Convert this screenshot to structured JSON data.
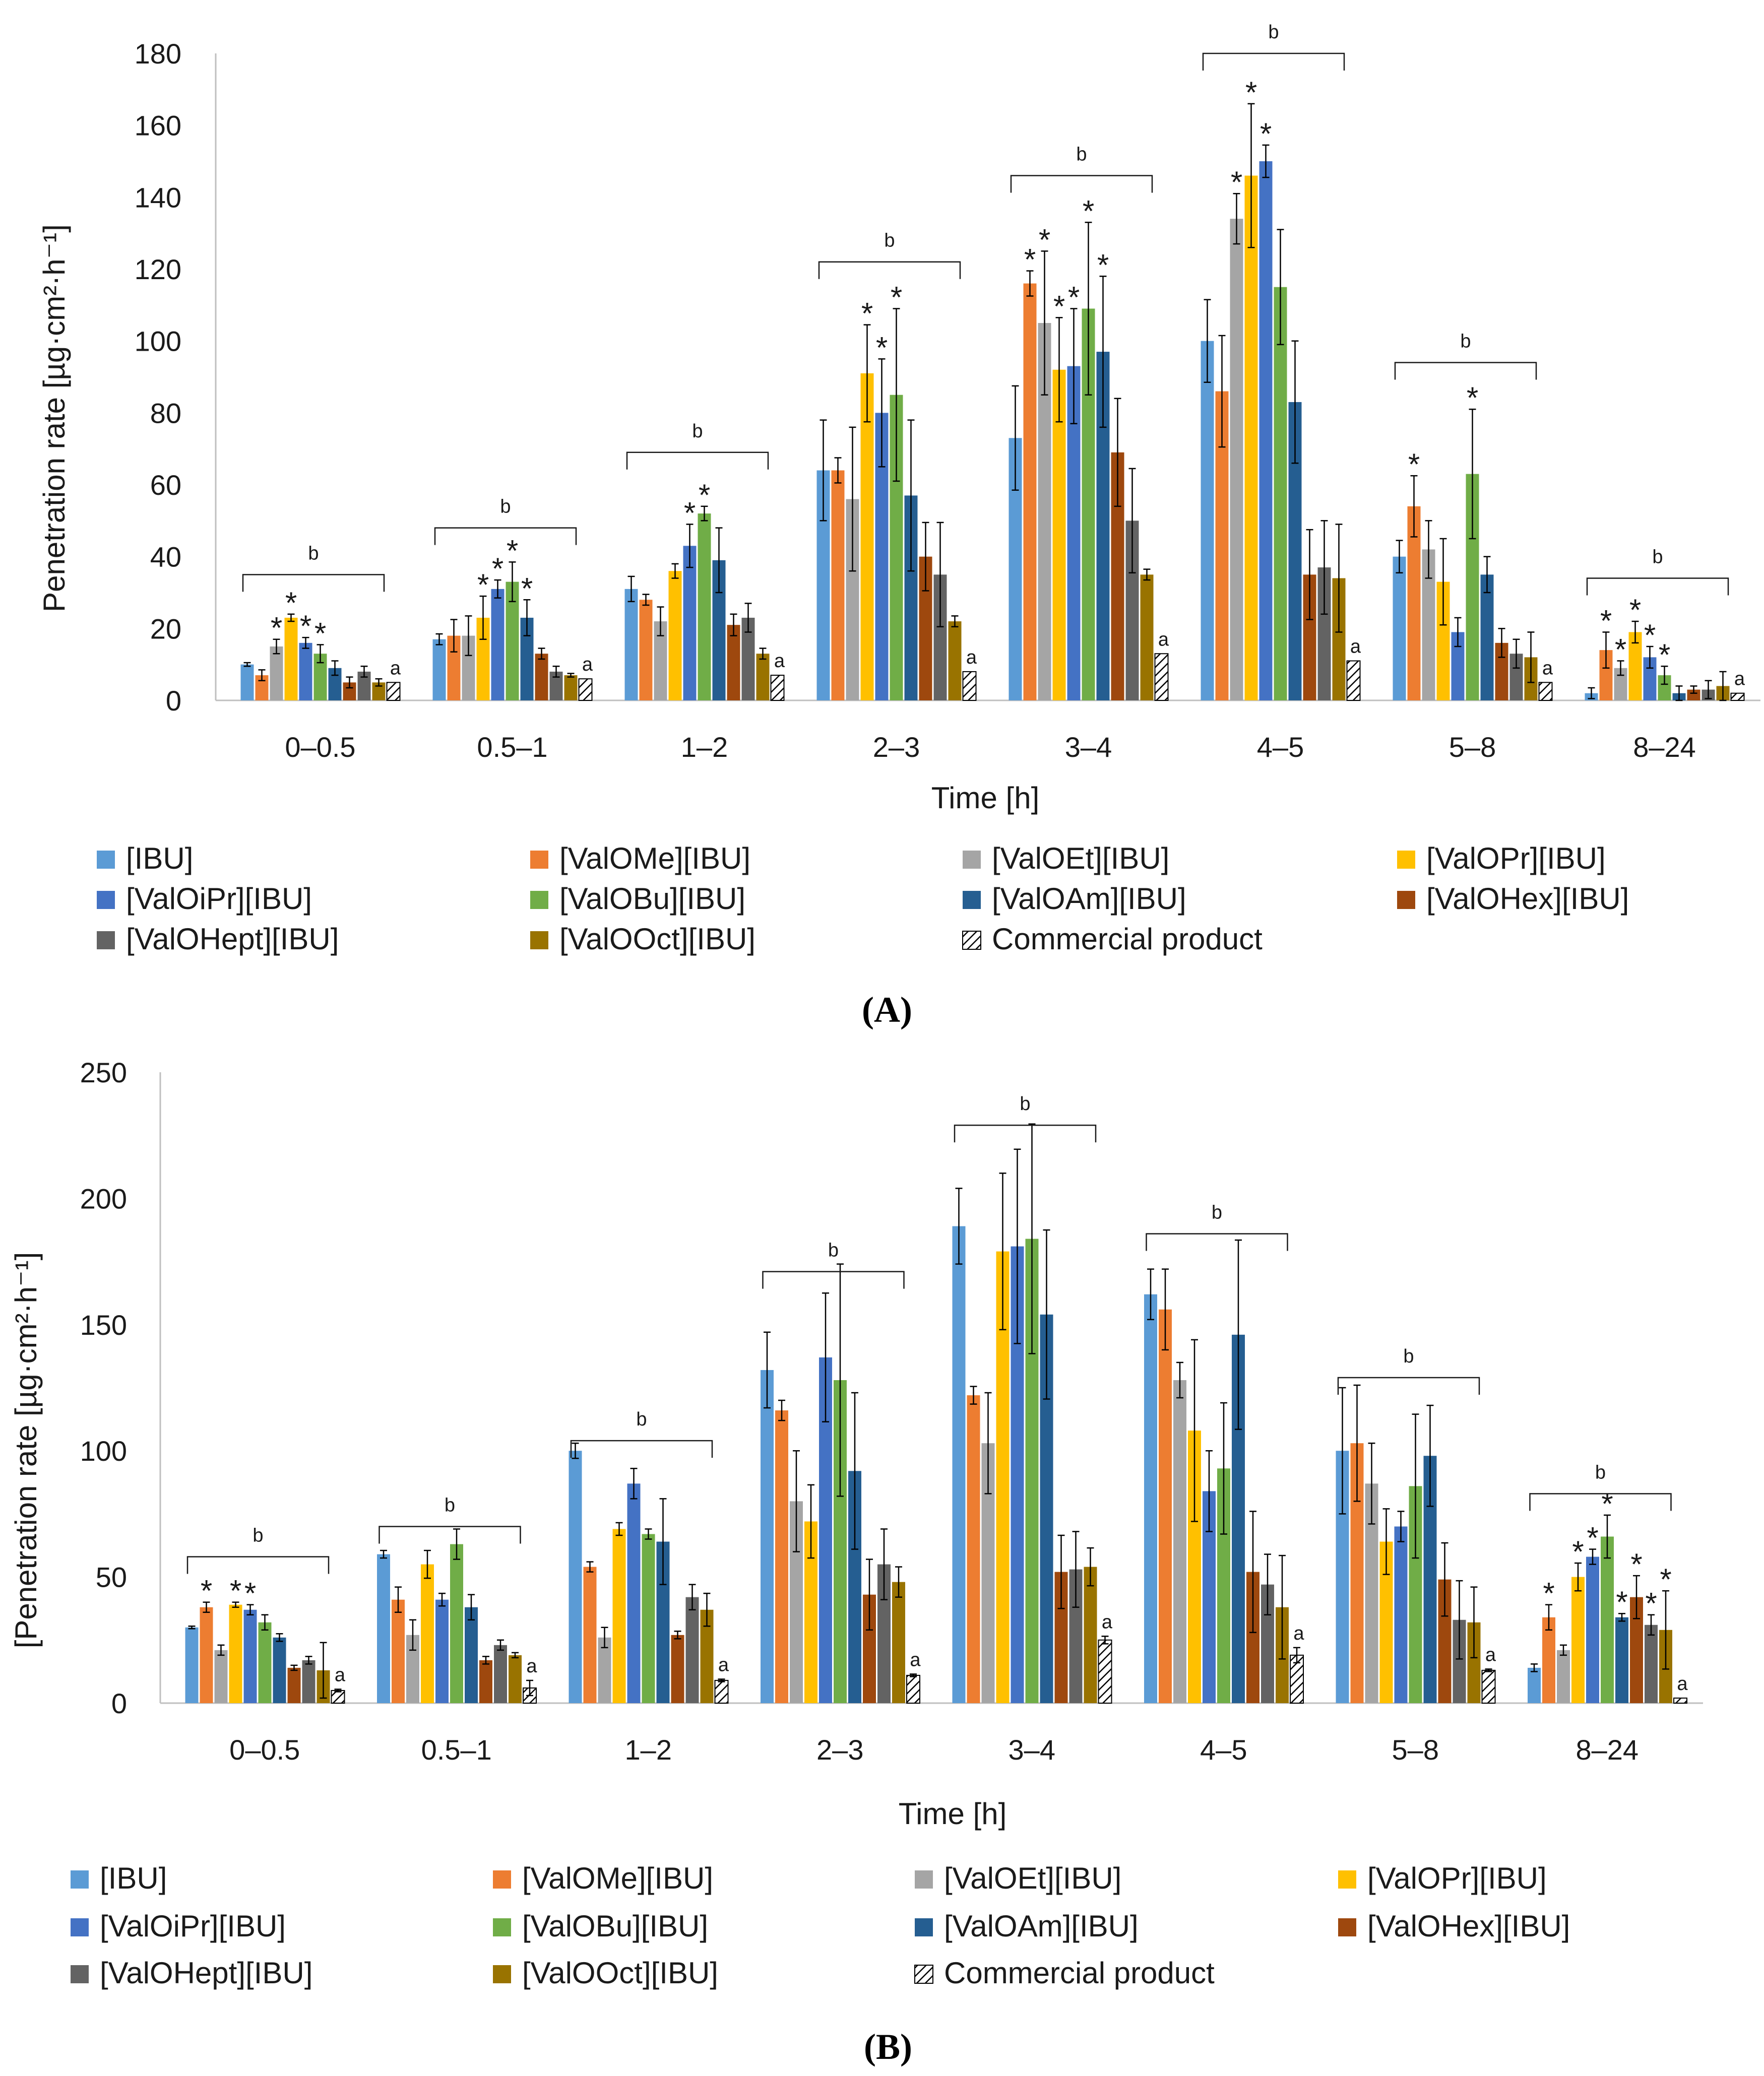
{
  "series_style": [
    {
      "name": "[IBU]",
      "color": "#5B9BD5"
    },
    {
      "name": "[ValOMe][IBU]",
      "color": "#ED7D31"
    },
    {
      "name": "[ValOEt][IBU]",
      "color": "#A5A5A5"
    },
    {
      "name": "[ValOPr][IBU]",
      "color": "#FFC000"
    },
    {
      "name": "[ValOiPr][IBU]",
      "color": "#4472C4"
    },
    {
      "name": "[ValOBu][IBU]",
      "color": "#70AD47"
    },
    {
      "name": "[ValOAm][IBU]",
      "color": "#255E91"
    },
    {
      "name": "[ValOHex][IBU]",
      "color": "#9E480E"
    },
    {
      "name": "[ValOHept][IBU]",
      "color": "#636363"
    },
    {
      "name": "[ValOOct][IBU]",
      "color": "#997300"
    },
    {
      "name": "Commercial product",
      "color": "hatch"
    }
  ],
  "chart_data": [
    {
      "type": "bar",
      "panel_label": "(A)",
      "panel_letter": "A",
      "xlabel": "Time [h]",
      "ylabel": "Penetration rate [µg·cm²·h⁻¹]",
      "ylim": [
        0,
        180
      ],
      "yticks": [
        0,
        20,
        40,
        60,
        80,
        100,
        120,
        140,
        160,
        180
      ],
      "categories": [
        "0–0.5",
        "0.5–1",
        "1–2",
        "2–3",
        "3–4",
        "4–5",
        "5–8",
        "8–24"
      ],
      "series": [
        {
          "name": "[IBU]",
          "values": [
            10,
            17,
            31,
            64,
            73,
            100,
            40,
            2
          ],
          "errors": [
            0.5,
            1.5,
            3.5,
            14,
            14.5,
            11.5,
            4.5,
            1.5
          ]
        },
        {
          "name": "[ValOMe][IBU]",
          "values": [
            7,
            18,
            28,
            64,
            116,
            86,
            54,
            14
          ],
          "errors": [
            1.5,
            4.5,
            1.5,
            3.5,
            3.5,
            15.5,
            8.5,
            5
          ]
        },
        {
          "name": "[ValOEt][IBU]",
          "values": [
            15,
            18,
            22,
            56,
            105,
            134,
            42,
            9
          ],
          "errors": [
            2,
            5.5,
            4,
            20,
            20,
            7,
            8,
            2
          ]
        },
        {
          "name": "[ValOPr][IBU]",
          "values": [
            23,
            23,
            36,
            91,
            92,
            146,
            33,
            19
          ],
          "errors": [
            1,
            6,
            2,
            13.5,
            14.5,
            20,
            12,
            3
          ]
        },
        {
          "name": "[ValOiPr][IBU]",
          "values": [
            16,
            31,
            43,
            80,
            93,
            150,
            19,
            12
          ],
          "errors": [
            1.5,
            2.5,
            6,
            15,
            16,
            4.5,
            4,
            3
          ]
        },
        {
          "name": "[ValOBu][IBU]",
          "values": [
            13,
            33,
            52,
            85,
            109,
            115,
            63,
            7
          ],
          "errors": [
            2.5,
            5.5,
            2,
            24,
            24,
            16,
            18,
            2.5
          ]
        },
        {
          "name": "[ValOAm][IBU]",
          "values": [
            9,
            23,
            39,
            57,
            97,
            83,
            35,
            2
          ],
          "errors": [
            2,
            5,
            9,
            21,
            21,
            17,
            5,
            2
          ]
        },
        {
          "name": "[ValOHex][IBU]",
          "values": [
            5,
            13,
            21,
            40,
            69,
            35,
            16,
            3
          ],
          "errors": [
            1.5,
            1.5,
            3,
            9.5,
            15,
            12.5,
            4,
            1
          ]
        },
        {
          "name": "[ValOHept][IBU]",
          "values": [
            8,
            8,
            23,
            35,
            50,
            37,
            13,
            3
          ],
          "errors": [
            1.5,
            1.5,
            4,
            14.5,
            14.5,
            13,
            4,
            2.5
          ]
        },
        {
          "name": "[ValOOct][IBU]",
          "values": [
            5,
            7,
            13,
            22,
            35,
            34,
            12,
            4
          ],
          "errors": [
            1,
            0.5,
            1.5,
            1.5,
            1.5,
            15,
            7,
            4
          ]
        },
        {
          "name": "Commercial product",
          "values": [
            5,
            6,
            7,
            8,
            13,
            11,
            5,
            2
          ],
          "errors": [
            0,
            0,
            0,
            0,
            0,
            0,
            0,
            0
          ]
        }
      ],
      "significance": {
        "a_marks": [
          "a",
          "a",
          "a",
          "a",
          "a",
          "a",
          "a",
          "a"
        ],
        "b_brackets": [
          {
            "label": "b",
            "category": "0–0.5",
            "value": 35
          },
          {
            "label": "b",
            "category": "0.5–1",
            "value": 48
          },
          {
            "label": "b",
            "category": "1–2",
            "value": 69
          },
          {
            "label": "b",
            "category": "2–3",
            "value": 122
          },
          {
            "label": "b",
            "category": "3–4",
            "value": 146
          },
          {
            "label": "b",
            "category": "4–5",
            "value": 180
          },
          {
            "label": "b",
            "category": "5–8",
            "value": 94
          },
          {
            "label": "b",
            "category": "8–24",
            "value": 34
          }
        ],
        "stars": [
          {
            "mark": "*",
            "category": 0,
            "series": [
              2,
              3,
              4,
              5
            ]
          },
          {
            "mark": "*",
            "category": 1,
            "series": [
              3,
              4,
              5,
              6
            ]
          },
          {
            "mark": "*",
            "category": 2,
            "series": [
              4,
              5
            ]
          },
          {
            "mark": "*",
            "category": 3,
            "series": [
              3,
              4,
              5
            ]
          },
          {
            "mark": "*",
            "category": 4,
            "series": [
              1,
              2,
              3,
              4,
              5,
              6
            ]
          },
          {
            "mark": "*",
            "category": 5,
            "series": [
              2,
              3,
              4
            ]
          },
          {
            "mark": "*",
            "category": 6,
            "series": [
              1,
              5
            ]
          },
          {
            "mark": "*",
            "category": 7,
            "series": [
              1,
              2,
              3,
              4,
              5
            ]
          }
        ]
      }
    },
    {
      "type": "bar",
      "panel_label": "(B)",
      "panel_letter": "B",
      "xlabel": "Time [h]",
      "ylabel": "[Penetration rate [µg·cm²·h⁻¹]",
      "ylim": [
        0,
        250
      ],
      "yticks": [
        0,
        50,
        100,
        150,
        200,
        250
      ],
      "categories": [
        "0–0.5",
        "0.5–1",
        "1–2",
        "2–3",
        "3–4",
        "4–5",
        "5–8",
        "8–24"
      ],
      "series": [
        {
          "name": "[IBU]",
          "values": [
            30,
            59,
            100,
            132,
            189,
            162,
            100,
            14
          ],
          "errors": [
            0.5,
            1.5,
            3,
            15,
            15,
            10,
            25,
            1.5
          ]
        },
        {
          "name": "[ValOMe][IBU]",
          "values": [
            38,
            41,
            54,
            116,
            122,
            156,
            103,
            34
          ],
          "errors": [
            2,
            5,
            2,
            4,
            3.5,
            16,
            23,
            5
          ]
        },
        {
          "name": "[ValOEt][IBU]",
          "values": [
            21,
            27,
            26,
            80,
            103,
            128,
            87,
            21
          ],
          "errors": [
            2,
            6,
            4,
            20,
            20,
            7,
            16,
            2
          ]
        },
        {
          "name": "[ValOPr][IBU]",
          "values": [
            39,
            55,
            69,
            72,
            179,
            108,
            64,
            50
          ],
          "errors": [
            1,
            5.5,
            2.5,
            14.5,
            31,
            36,
            13,
            5.5
          ]
        },
        {
          "name": "[ValOiPr][IBU]",
          "values": [
            37,
            41,
            87,
            137,
            181,
            84,
            70,
            58
          ],
          "errors": [
            2,
            2.5,
            6,
            25.5,
            38.5,
            16,
            6,
            3
          ]
        },
        {
          "name": "[ValOBu][IBU]",
          "values": [
            32,
            63,
            67,
            128,
            184,
            93,
            86,
            66
          ],
          "errors": [
            3,
            6,
            2,
            46,
            45.5,
            26,
            28.5,
            8.5
          ]
        },
        {
          "name": "[ValOAm][IBU]",
          "values": [
            26,
            38,
            64,
            92,
            154,
            146,
            98,
            34
          ],
          "errors": [
            1.5,
            5,
            17,
            31,
            33.5,
            37.5,
            20,
            1.5
          ]
        },
        {
          "name": "[ValOHex][IBU]",
          "values": [
            14,
            17,
            27,
            43,
            52,
            52,
            49,
            42
          ],
          "errors": [
            1,
            1.5,
            1.5,
            14,
            14.5,
            24,
            14.5,
            8.5
          ]
        },
        {
          "name": "[ValOHept][IBU]",
          "values": [
            17,
            23,
            42,
            55,
            53,
            47,
            33,
            31
          ],
          "errors": [
            1.5,
            2,
            5,
            14,
            15,
            12,
            15.5,
            4
          ]
        },
        {
          "name": "[ValOOct][IBU]",
          "values": [
            13,
            19,
            37,
            48,
            54,
            38,
            32,
            29
          ],
          "errors": [
            11,
            1,
            6.5,
            6,
            7.5,
            20.5,
            14,
            15.5
          ]
        },
        {
          "name": "Commercial product",
          "values": [
            5,
            6,
            9,
            11,
            25,
            19,
            13,
            2
          ],
          "errors": [
            0.5,
            3,
            0.5,
            0.5,
            1.5,
            3,
            0.5,
            0
          ]
        }
      ],
      "significance": {
        "a_marks": [
          "a",
          "a",
          "a",
          "a",
          "a",
          "a",
          "a",
          "a"
        ],
        "b_brackets": [
          {
            "label": "b",
            "category": "0–0.5",
            "value": 58
          },
          {
            "label": "b",
            "category": "0.5–1",
            "value": 70
          },
          {
            "label": "b",
            "category": "1–2",
            "value": 104
          },
          {
            "label": "b",
            "category": "2–3",
            "value": 171
          },
          {
            "label": "b",
            "category": "3–4",
            "value": 229
          },
          {
            "label": "b",
            "category": "4–5",
            "value": 186
          },
          {
            "label": "b",
            "category": "5–8",
            "value": 129
          },
          {
            "label": "b",
            "category": "8–24",
            "value": 83
          }
        ],
        "stars": [
          {
            "mark": "*",
            "category": 0,
            "series": [
              1,
              3,
              4
            ]
          },
          {
            "mark": "*",
            "category": 7,
            "series": [
              1,
              3,
              4,
              5,
              6,
              7,
              8,
              9
            ]
          }
        ]
      }
    }
  ]
}
